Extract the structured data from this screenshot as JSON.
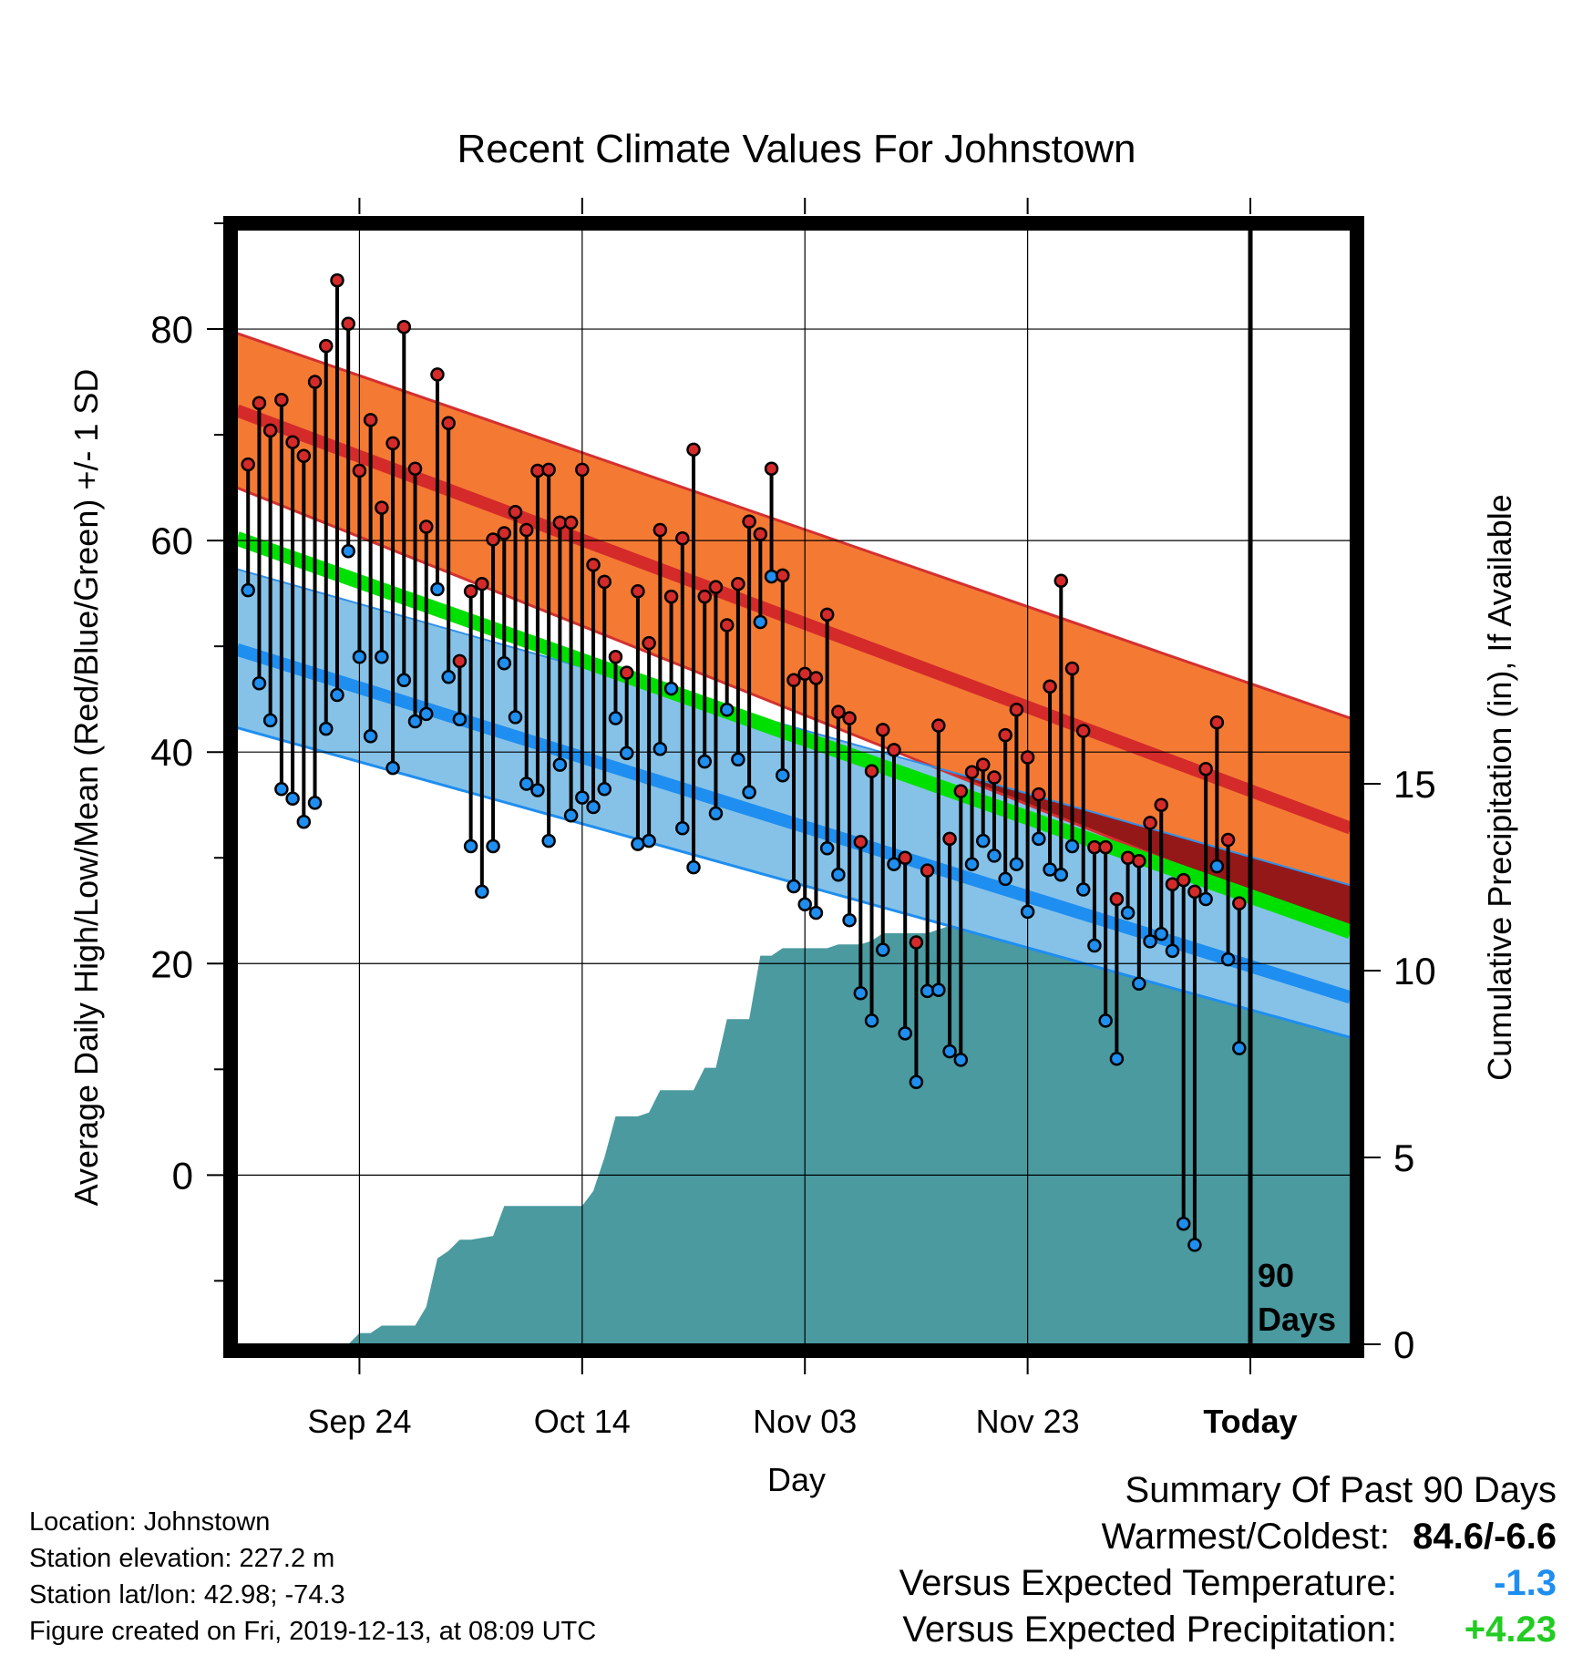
{
  "chart_data": {
    "type": "line",
    "title": "Recent Climate Values For Johnstown",
    "xlabel": "Day",
    "ylabel": "Average Daily High/Low/Mean (Red/Blue/Green) +/- 1 SD",
    "y2label": "Cumulative Precipitation (in), If Available",
    "ylim": [
      -16,
      90
    ],
    "y2lim": [
      0,
      30
    ],
    "y_ticks": [
      "80",
      "60",
      "40",
      "20",
      "0"
    ],
    "y2_ticks": [
      "15",
      "10",
      "5",
      "0"
    ],
    "x_tick_labels": [
      "Sep 24",
      "Oct 14",
      "Nov 03",
      "Nov 23",
      "Today"
    ],
    "x_tick_days": [
      11,
      31,
      51,
      71,
      91
    ],
    "xlim": [
      0,
      100
    ],
    "grid": true,
    "today_marker_label": [
      "90",
      "Days"
    ],
    "colors": {
      "normal_high_band": "#f47a34",
      "normal_high_line": "#d42a2a",
      "normal_mean_line": "#00e000",
      "normal_low_band": "#86c2e8",
      "normal_low_line": "#1e8ef0",
      "overlap_band": "#941818",
      "precipitation": "#4a9aa0",
      "high_marker": "#d42a2a",
      "low_marker": "#1e8ef0",
      "versus_temperature": "#1e8ef0",
      "versus_precipitation": "#22cc22"
    },
    "normals": {
      "days": [
        0,
        100
      ],
      "high_plus_sd": [
        79.6,
        43.2
      ],
      "high": [
        72.3,
        32.8
      ],
      "high_minus_sd": [
        65.0,
        22.8
      ],
      "mean": [
        60.2,
        23.0
      ],
      "low_plus_sd": [
        57.3,
        27.4
      ],
      "low": [
        49.7,
        16.8
      ],
      "low_minus_sd": [
        42.3,
        13.0
      ]
    },
    "daily": {
      "days": [
        1,
        2,
        3,
        4,
        5,
        6,
        7,
        8,
        9,
        10,
        11,
        12,
        13,
        14,
        15,
        16,
        17,
        18,
        19,
        20,
        21,
        22,
        23,
        24,
        25,
        26,
        27,
        28,
        29,
        30,
        31,
        32,
        33,
        34,
        35,
        36,
        37,
        38,
        39,
        40,
        41,
        42,
        43,
        44,
        45,
        46,
        47,
        48,
        49,
        50,
        51,
        52,
        53,
        54,
        55,
        56,
        57,
        58,
        59,
        60,
        61,
        62,
        63,
        64,
        65,
        66,
        67,
        68,
        69,
        70,
        71,
        72,
        73,
        74,
        75,
        76,
        77,
        78,
        79,
        80,
        81,
        82,
        83,
        84,
        85,
        86,
        87,
        88,
        89,
        90
      ],
      "high": [
        67.2,
        73.0,
        70.4,
        73.3,
        69.3,
        68.0,
        75.0,
        78.4,
        84.6,
        80.5,
        66.6,
        71.4,
        63.1,
        69.2,
        80.2,
        66.8,
        61.3,
        75.7,
        71.1,
        48.6,
        55.2,
        55.9,
        60.1,
        60.7,
        62.7,
        61.0,
        66.6,
        66.7,
        61.7,
        61.7,
        66.7,
        57.7,
        56.1,
        49.0,
        47.5,
        55.2,
        50.3,
        61.0,
        54.7,
        60.2,
        68.6,
        54.7,
        55.6,
        52.0,
        55.9,
        61.8,
        60.6,
        66.8,
        56.7,
        46.8,
        47.4,
        47.0,
        53.0,
        43.8,
        43.2,
        31.5,
        38.2,
        42.1,
        40.2,
        30.0,
        22.0,
        28.8,
        42.5,
        31.8,
        36.3,
        38.1,
        38.8,
        37.6,
        41.6,
        44.0,
        39.5,
        36.0,
        46.2,
        56.2,
        47.9,
        42.0,
        31.0,
        31.0,
        26.1,
        30.0,
        29.7,
        33.3,
        35.0,
        27.5,
        27.9,
        26.8,
        38.4,
        42.8,
        31.7,
        25.7
      ],
      "low": [
        55.3,
        46.5,
        43.0,
        36.5,
        35.6,
        33.4,
        35.2,
        42.2,
        45.4,
        59.0,
        49.0,
        41.5,
        49.0,
        38.5,
        46.8,
        42.9,
        43.6,
        55.4,
        47.1,
        43.1,
        31.1,
        26.8,
        31.1,
        48.4,
        43.3,
        37.0,
        36.4,
        31.6,
        38.8,
        34.0,
        35.7,
        34.8,
        36.5,
        43.2,
        39.9,
        31.3,
        31.6,
        40.3,
        46.0,
        32.8,
        29.1,
        39.1,
        34.2,
        44.0,
        39.3,
        36.2,
        52.3,
        56.6,
        37.8,
        27.3,
        25.6,
        24.8,
        30.9,
        28.4,
        24.1,
        17.2,
        14.6,
        21.3,
        29.4,
        13.4,
        8.8,
        17.4,
        17.5,
        11.7,
        10.9,
        29.4,
        31.6,
        30.2,
        28.0,
        29.4,
        24.9,
        31.8,
        28.9,
        28.4,
        31.1,
        27.0,
        21.7,
        14.6,
        11.0,
        24.8,
        18.1,
        22.1,
        22.8,
        21.2,
        -4.6,
        -6.6,
        26.1,
        29.2,
        20.4,
        12.0
      ]
    },
    "precipitation": {
      "days": [
        0,
        10,
        11,
        12,
        13,
        14,
        16,
        17,
        18,
        19,
        20,
        21,
        23,
        24,
        25,
        26,
        27,
        28,
        31,
        32,
        33,
        34,
        35,
        36,
        37,
        38,
        39,
        40,
        41,
        42,
        43,
        44,
        45,
        46,
        47,
        48,
        49,
        50,
        51,
        52,
        53,
        54,
        55,
        56,
        57,
        58,
        59,
        60,
        61,
        62,
        63,
        64,
        65,
        66,
        67,
        68,
        69,
        70,
        71,
        72,
        73,
        74,
        75,
        76,
        77,
        78,
        79,
        80,
        81,
        82,
        83,
        84,
        85,
        86,
        87,
        88,
        89,
        90,
        91,
        100
      ],
      "cumulative": [
        0,
        0,
        0.3,
        0.3,
        0.5,
        0.5,
        0.5,
        1.0,
        2.3,
        2.5,
        2.8,
        2.8,
        2.9,
        3.7,
        3.7,
        3.7,
        3.7,
        3.7,
        3.7,
        4.1,
        5.0,
        6.1,
        6.1,
        6.1,
        6.2,
        6.8,
        6.8,
        6.8,
        6.8,
        7.4,
        7.4,
        8.7,
        8.7,
        8.7,
        10.4,
        10.4,
        10.6,
        10.6,
        10.6,
        10.6,
        10.6,
        10.7,
        10.7,
        10.7,
        10.8,
        11.0,
        11.0,
        11.0,
        11.0,
        11.0,
        11.1,
        11.2,
        11.2,
        12.2,
        12.2,
        12.3,
        12.8,
        12.8,
        12.8,
        13.1,
        13.2,
        13.5,
        13.5,
        13.5,
        15.4,
        15.4,
        15.6,
        15.7,
        15.9,
        16.0,
        16.1,
        16.5,
        16.5,
        16.5,
        16.5,
        16.5,
        16.5,
        16.5,
        16.5,
        16.5
      ]
    }
  },
  "info": {
    "location": "Location: Johnstown",
    "elevation": "Station elevation: 227.2 m",
    "latlon": "Station lat/lon: 42.98; -74.3",
    "created": "Figure created on Fri, 2019-12-13, at 08:09 UTC"
  },
  "summary": {
    "title": "Summary Of Past 90 Days",
    "warmest_coldest_label": "Warmest/Coldest:",
    "warmest_coldest_value": "84.6/-6.6",
    "vs_temp_label": "Versus Expected Temperature:",
    "vs_temp_value": "-1.3",
    "vs_precip_label": "Versus Expected Precipitation:",
    "vs_precip_value": "+4.23"
  }
}
